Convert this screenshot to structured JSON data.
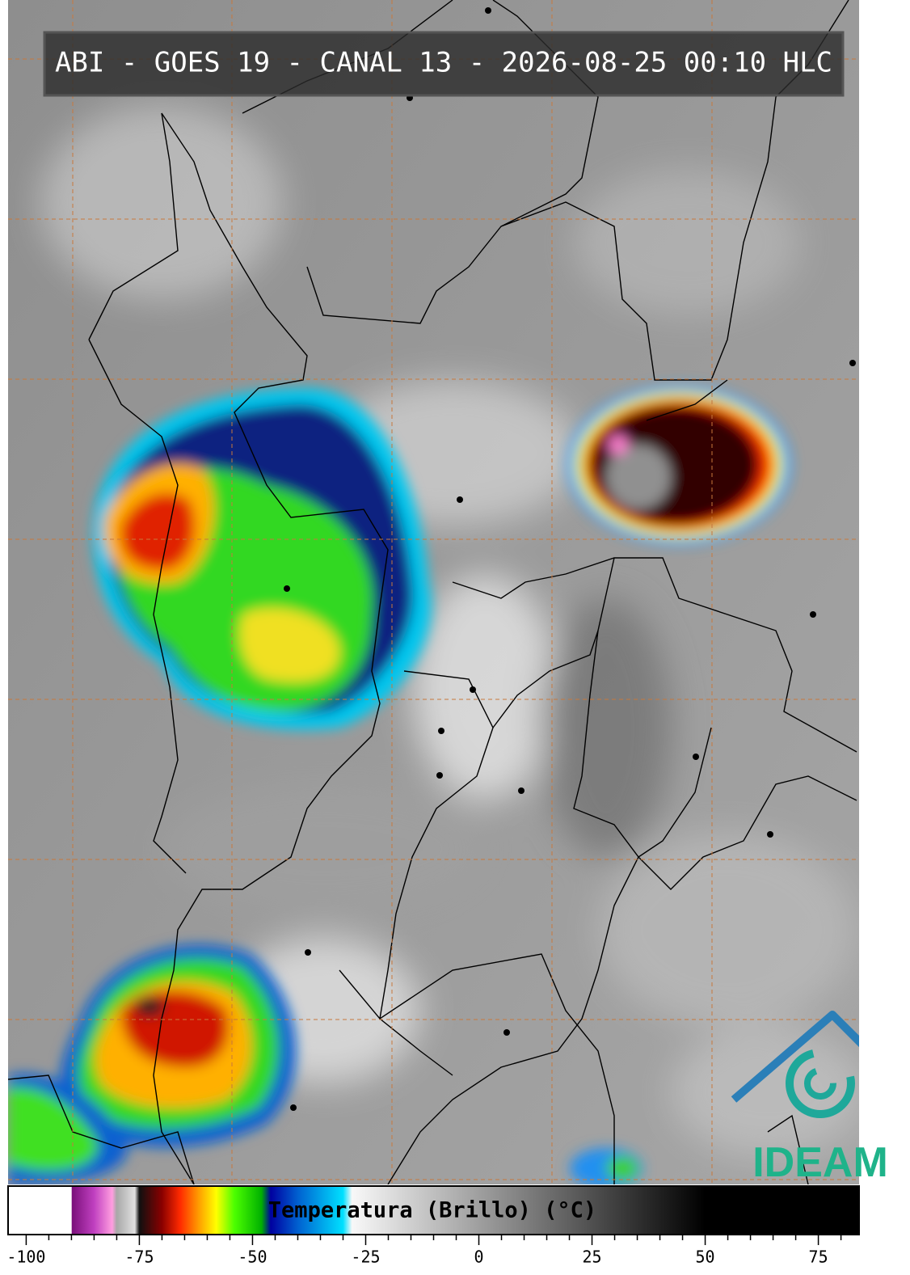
{
  "title": "ABI - GOES 19 - CANAL 13 - 2026-08-25 00:10 HLC",
  "logo": "IDEAM",
  "colorbar": {
    "label": "Temperatura (Brillo) (°C)",
    "range": [
      -104,
      84
    ],
    "ticks": [
      -100,
      -75,
      -50,
      -25,
      0,
      25,
      50,
      75
    ],
    "minor_ticks": [
      -95,
      -90,
      -85,
      -80,
      -70,
      -65,
      -60,
      -55,
      -45,
      -40,
      -35,
      -30,
      -20,
      -15,
      -10,
      -5,
      5,
      10,
      15,
      20,
      30,
      35,
      40,
      45,
      55,
      60,
      65,
      70,
      80
    ],
    "stops": [
      {
        "value": -104,
        "color": "#ffffff"
      },
      {
        "value": -90,
        "color": "#ffffff"
      },
      {
        "value": -89.9,
        "color": "#7a0f7a"
      },
      {
        "value": -85,
        "color": "#c040c0"
      },
      {
        "value": -81,
        "color": "#ff9ee0"
      },
      {
        "value": -80,
        "color": "#a8a8a8"
      },
      {
        "value": -76,
        "color": "#e0e0e0"
      },
      {
        "value": -75,
        "color": "#101010"
      },
      {
        "value": -70,
        "color": "#8a0000"
      },
      {
        "value": -66,
        "color": "#ff2a00"
      },
      {
        "value": -62,
        "color": "#ff9a00"
      },
      {
        "value": -58,
        "color": "#ffff00"
      },
      {
        "value": -54,
        "color": "#4cff00"
      },
      {
        "value": -48,
        "color": "#00b000"
      },
      {
        "value": -46,
        "color": "#0000a0"
      },
      {
        "value": -40,
        "color": "#0060d0"
      },
      {
        "value": -30,
        "color": "#00e0ff"
      },
      {
        "value": -28,
        "color": "#f8f8f8"
      },
      {
        "value": 50,
        "color": "#000000"
      },
      {
        "value": 84,
        "color": "#000000"
      }
    ]
  }
}
